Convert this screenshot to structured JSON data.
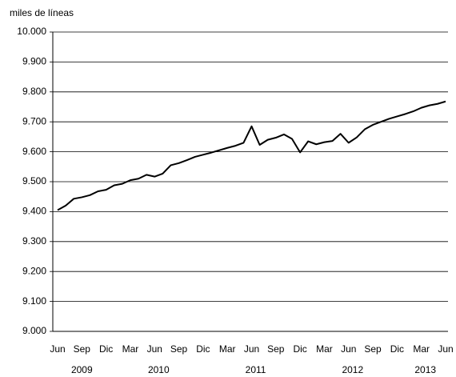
{
  "chart_data": {
    "type": "line",
    "y_axis_label": "miles de líneas",
    "categories": [
      "Jun",
      null,
      null,
      "Sep",
      null,
      null,
      "Dic",
      null,
      null,
      "Mar",
      null,
      null,
      "Jun",
      null,
      null,
      "Sep",
      null,
      null,
      "Dic",
      null,
      null,
      "Mar",
      null,
      null,
      "Jun",
      null,
      null,
      "Sep",
      null,
      null,
      "Dic",
      null,
      null,
      "Mar",
      null,
      null,
      "Jun",
      null,
      null,
      "Sep",
      null,
      null,
      "Dic",
      null,
      null,
      "Mar",
      null,
      null,
      "Jun"
    ],
    "category_groups": [
      {
        "label": "2009",
        "count": 7
      },
      {
        "label": "2010",
        "count": 12
      },
      {
        "label": "2011",
        "count": 12
      },
      {
        "label": "2012",
        "count": 12
      },
      {
        "label": "2013",
        "count": 6
      }
    ],
    "series": [
      {
        "color": "#000000",
        "values": [
          9405,
          9420,
          9443,
          9448,
          9455,
          9468,
          9473,
          9488,
          9493,
          9505,
          9510,
          9523,
          9517,
          9527,
          9555,
          9562,
          9572,
          9583,
          9590,
          9597,
          9605,
          9613,
          9620,
          9630,
          9685,
          9623,
          9640,
          9647,
          9658,
          9643,
          9598,
          9635,
          9625,
          9632,
          9636,
          9660,
          9630,
          9648,
          9675,
          9690,
          9700,
          9710,
          9718,
          9726,
          9735,
          9747,
          9755,
          9760,
          9768
        ]
      }
    ],
    "ylim": [
      9000,
      10000
    ],
    "yticks": [
      {
        "value": 9000,
        "label": "9.000"
      },
      {
        "value": 9100,
        "label": "9.100"
      },
      {
        "value": 9200,
        "label": "9.200"
      },
      {
        "value": 9300,
        "label": "9.300"
      },
      {
        "value": 9400,
        "label": "9.400"
      },
      {
        "value": 9500,
        "label": "9.500"
      },
      {
        "value": 9600,
        "label": "9.600"
      },
      {
        "value": 9700,
        "label": "9.700"
      },
      {
        "value": 9800,
        "label": "9.800"
      },
      {
        "value": 9900,
        "label": "9.900"
      },
      {
        "value": 10000,
        "label": "10.000"
      }
    ],
    "grid": true
  }
}
